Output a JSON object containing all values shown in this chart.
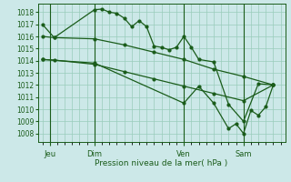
{
  "bg_color": "#cce8e8",
  "grid_color": "#99ccbb",
  "line_color": "#1a5c1a",
  "marker_color": "#1a5c1a",
  "xlabel": "Pression niveau de la mer( hPa )",
  "xlabel_color": "#1a5c1a",
  "tick_color": "#1a5c1a",
  "day_labels": [
    "Jeu",
    "Dim",
    "Ven",
    "Sam"
  ],
  "day_positions": [
    0.5,
    3.5,
    9.5,
    13.5
  ],
  "ylim": [
    1007.3,
    1018.7
  ],
  "yticks": [
    1008,
    1009,
    1010,
    1011,
    1012,
    1013,
    1014,
    1015,
    1016,
    1017,
    1018
  ],
  "series1_x": [
    0,
    0.8,
    3.5,
    4.0,
    4.5,
    5.0,
    5.5,
    6.0,
    6.5,
    7.0,
    7.5,
    8.0,
    8.5,
    9.0,
    9.5,
    10.0,
    10.5,
    11.5,
    12.5,
    13.5,
    14.5,
    15.5
  ],
  "series1_y": [
    1017.0,
    1015.9,
    1018.2,
    1018.25,
    1018.0,
    1017.9,
    1017.5,
    1016.8,
    1017.3,
    1016.8,
    1015.2,
    1015.1,
    1014.9,
    1015.1,
    1016.0,
    1015.1,
    1014.1,
    1013.9,
    1010.4,
    1009.0,
    1012.1,
    1012.0
  ],
  "series2_x": [
    0,
    0.8,
    3.5,
    5.5,
    7.5,
    9.5,
    11.5,
    13.5,
    15.5
  ],
  "series2_y": [
    1016.0,
    1015.9,
    1015.8,
    1015.3,
    1014.7,
    1014.1,
    1013.3,
    1012.7,
    1012.0
  ],
  "series3_x": [
    0,
    0.8,
    3.5,
    5.5,
    7.5,
    9.5,
    11.5,
    13.5,
    15.5
  ],
  "series3_y": [
    1014.1,
    1014.05,
    1013.7,
    1013.1,
    1012.5,
    1011.9,
    1011.3,
    1010.7,
    1012.0
  ],
  "series4_x": [
    0,
    3.5,
    9.5,
    10.5,
    11.5,
    12.5,
    13.0,
    13.5,
    14.0,
    14.5,
    15.0,
    15.5
  ],
  "series4_y": [
    1014.1,
    1013.8,
    1010.5,
    1011.9,
    1010.5,
    1008.4,
    1008.8,
    1008.0,
    1009.9,
    1009.5,
    1010.2,
    1012.0
  ],
  "vline_positions": [
    0.5,
    3.5,
    9.5,
    13.5
  ],
  "xlim": [
    -0.3,
    16.3
  ]
}
